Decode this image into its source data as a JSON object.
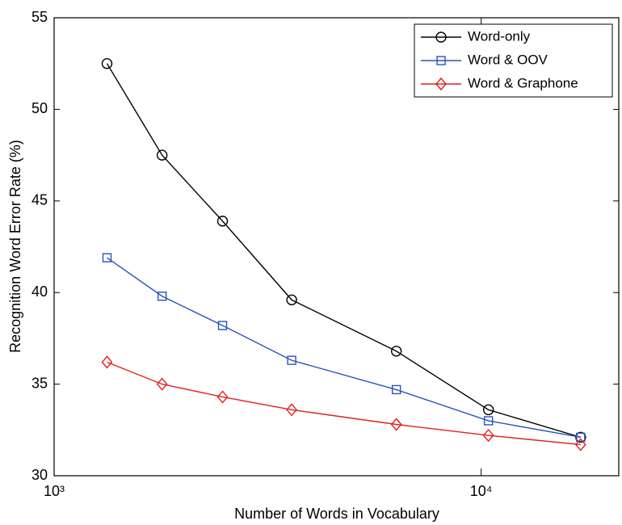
{
  "chart_data": {
    "type": "line",
    "x_label": "Number of Words in Vocabulary",
    "y_label": "Recognition Word Error Rate (%)",
    "x_scale": "log",
    "x": [
      1330,
      1790,
      2480,
      3600,
      6330,
      10400,
      17100
    ],
    "series": [
      {
        "name": "Word-only",
        "color": "#000000",
        "marker": "circle",
        "values": [
          52.5,
          47.5,
          43.9,
          39.6,
          36.8,
          33.6,
          32.1
        ]
      },
      {
        "name": "Word & OOV",
        "color": "#2a52be",
        "marker": "square",
        "values": [
          41.9,
          39.8,
          38.2,
          36.3,
          34.7,
          33.0,
          32.1
        ]
      },
      {
        "name": "Word & Graphone",
        "color": "#e0201b",
        "marker": "diamond",
        "values": [
          36.2,
          35.0,
          34.3,
          33.6,
          32.8,
          32.2,
          31.7
        ]
      }
    ],
    "xlim": [
      1000,
      21000
    ],
    "xticks": [
      {
        "value": 1000,
        "label": "10³"
      },
      {
        "value": 10000,
        "label": "10⁴"
      }
    ],
    "ylim": [
      30,
      55
    ],
    "yticks": [
      30,
      35,
      40,
      45,
      50,
      55
    ],
    "grid": false,
    "legend": "upper right"
  }
}
